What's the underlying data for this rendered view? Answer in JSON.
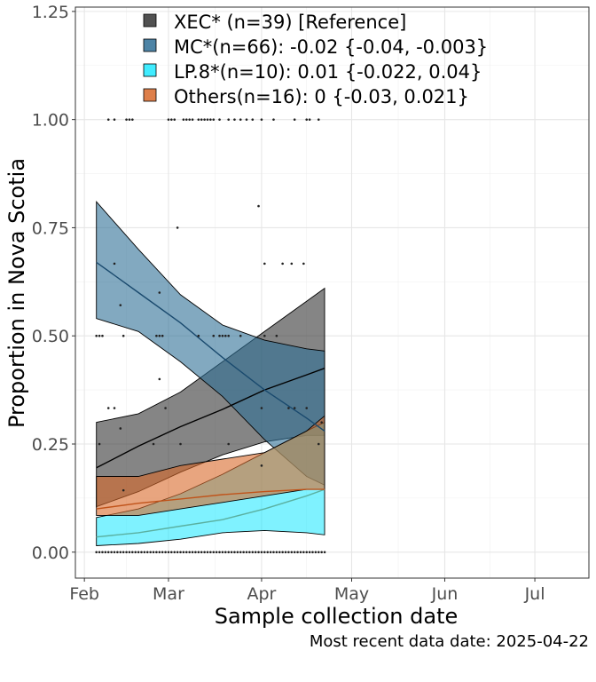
{
  "chart_data": {
    "type": "area",
    "xlabel": "Sample collection date",
    "ylabel": "Proportion in Nova Scotia",
    "caption": "Most recent data date: 2025-04-22",
    "xlim": [
      "2025-01-29",
      "2025-07-19"
    ],
    "ylim": [
      -0.06,
      1.26
    ],
    "x_ticks": [
      {
        "date": "2025-02-01",
        "label": "Feb"
      },
      {
        "date": "2025-03-01",
        "label": "Mar"
      },
      {
        "date": "2025-04-01",
        "label": "Apr"
      },
      {
        "date": "2025-05-01",
        "label": "May"
      },
      {
        "date": "2025-06-01",
        "label": "Jun"
      },
      {
        "date": "2025-07-01",
        "label": "Jul"
      }
    ],
    "y_ticks": [
      {
        "value": 0,
        "label": "0.00"
      },
      {
        "value": 0.25,
        "label": "0.25"
      },
      {
        "value": 0.5,
        "label": "0.50"
      },
      {
        "value": 0.75,
        "label": "0.75"
      },
      {
        "value": 1.0,
        "label": "1.00"
      },
      {
        "value": 1.25,
        "label": "1.25"
      }
    ],
    "grid": true,
    "legend_position": "top-left",
    "x_dates": [
      "2025-02-05",
      "2025-02-19",
      "2025-03-05",
      "2025-03-19",
      "2025-04-02",
      "2025-04-16",
      "2025-04-22"
    ],
    "series": [
      {
        "legend": "XEC* (n=39)  [Reference]",
        "color": "#000000",
        "fill": "#333333",
        "fill_opacity": 0.6,
        "fit": [
          0.195,
          0.245,
          0.29,
          0.33,
          0.375,
          0.41,
          0.425
        ],
        "lower": [
          0.105,
          0.14,
          0.185,
          0.225,
          0.255,
          0.27,
          0.27
        ],
        "upper": [
          0.3,
          0.32,
          0.37,
          0.44,
          0.51,
          0.58,
          0.61
        ]
      },
      {
        "legend": "MC*(n=66): -0.02 {-0.04, -0.003}",
        "color": "#1a4a6e",
        "fill": "#2e6f96",
        "fill_opacity": 0.6,
        "fit": [
          0.67,
          0.6,
          0.53,
          0.45,
          0.375,
          0.31,
          0.28
        ],
        "lower": [
          0.54,
          0.51,
          0.44,
          0.36,
          0.26,
          0.175,
          0.155
        ],
        "upper": [
          0.81,
          0.7,
          0.595,
          0.525,
          0.49,
          0.47,
          0.465
        ]
      },
      {
        "legend": "LP.8*(n=10): 0.01 {-0.022, 0.04}",
        "color": "#5ab0a0",
        "fill": "#00e5ff",
        "fill_opacity": 0.5,
        "fit": [
          0.035,
          0.045,
          0.06,
          0.075,
          0.1,
          0.13,
          0.145
        ],
        "lower": [
          0.015,
          0.02,
          0.03,
          0.045,
          0.05,
          0.045,
          0.04
        ],
        "upper": [
          0.08,
          0.1,
          0.135,
          0.18,
          0.23,
          0.28,
          0.3
        ]
      },
      {
        "legend": "Others(n=16): 0 {-0.03, 0.021}",
        "color": "#c0531a",
        "fill": "#d8692a",
        "fill_opacity": 0.6,
        "fit": [
          0.1,
          0.113,
          0.123,
          0.133,
          0.14,
          0.145,
          0.145
        ],
        "lower": [
          0.085,
          0.085,
          0.1,
          0.115,
          0.13,
          0.145,
          0.145
        ],
        "upper": [
          0.175,
          0.175,
          0.2,
          0.215,
          0.23,
          0.28,
          0.315
        ]
      }
    ],
    "points": [
      {
        "x": "2025-02-05",
        "y": 0.5
      },
      {
        "x": "2025-02-06",
        "y": 0.5
      },
      {
        "x": "2025-02-07",
        "y": 0.5
      },
      {
        "x": "2025-02-06",
        "y": 0.25
      },
      {
        "x": "2025-02-09",
        "y": 0.333
      },
      {
        "x": "2025-02-11",
        "y": 0.333
      },
      {
        "x": "2025-02-09",
        "y": 1.0
      },
      {
        "x": "2025-02-11",
        "y": 1.0
      },
      {
        "x": "2025-02-15",
        "y": 1.0
      },
      {
        "x": "2025-02-16",
        "y": 1.0
      },
      {
        "x": "2025-02-17",
        "y": 1.0
      },
      {
        "x": "2025-02-11",
        "y": 0.667
      },
      {
        "x": "2025-02-13",
        "y": 0.571
      },
      {
        "x": "2025-02-14",
        "y": 0.5
      },
      {
        "x": "2025-02-13",
        "y": 0.286
      },
      {
        "x": "2025-02-14",
        "y": 0.143
      },
      {
        "x": "2025-02-24",
        "y": 0.25
      },
      {
        "x": "2025-02-26",
        "y": 0.6
      },
      {
        "x": "2025-02-25",
        "y": 0.5
      },
      {
        "x": "2025-02-26",
        "y": 0.5
      },
      {
        "x": "2025-02-27",
        "y": 0.5
      },
      {
        "x": "2025-02-26",
        "y": 0.4
      },
      {
        "x": "2025-02-28",
        "y": 0.333
      },
      {
        "x": "2025-03-01",
        "y": 1.0
      },
      {
        "x": "2025-03-02",
        "y": 1.0
      },
      {
        "x": "2025-03-03",
        "y": 1.0
      },
      {
        "x": "2025-03-04",
        "y": 0.75
      },
      {
        "x": "2025-03-05",
        "y": 0.25
      },
      {
        "x": "2025-03-06",
        "y": 1.0
      },
      {
        "x": "2025-03-07",
        "y": 1.0
      },
      {
        "x": "2025-03-08",
        "y": 1.0
      },
      {
        "x": "2025-03-09",
        "y": 1.0
      },
      {
        "x": "2025-03-11",
        "y": 1.0
      },
      {
        "x": "2025-03-12",
        "y": 1.0
      },
      {
        "x": "2025-03-13",
        "y": 1.0
      },
      {
        "x": "2025-03-14",
        "y": 1.0
      },
      {
        "x": "2025-03-15",
        "y": 1.0
      },
      {
        "x": "2025-03-16",
        "y": 1.0
      },
      {
        "x": "2025-03-18",
        "y": 1.0
      },
      {
        "x": "2025-03-21",
        "y": 1.0
      },
      {
        "x": "2025-03-23",
        "y": 1.0
      },
      {
        "x": "2025-03-25",
        "y": 1.0
      },
      {
        "x": "2025-03-27",
        "y": 1.0
      },
      {
        "x": "2025-03-11",
        "y": 0.5
      },
      {
        "x": "2025-03-16",
        "y": 0.5
      },
      {
        "x": "2025-03-18",
        "y": 0.5
      },
      {
        "x": "2025-03-19",
        "y": 0.5
      },
      {
        "x": "2025-03-20",
        "y": 0.5
      },
      {
        "x": "2025-03-21",
        "y": 0.5
      },
      {
        "x": "2025-03-25",
        "y": 0.5
      },
      {
        "x": "2025-03-31",
        "y": 0.8
      },
      {
        "x": "2025-04-02",
        "y": 0.667
      },
      {
        "x": "2025-04-08",
        "y": 0.667
      },
      {
        "x": "2025-04-11",
        "y": 0.667
      },
      {
        "x": "2025-04-15",
        "y": 0.667
      },
      {
        "x": "2025-03-29",
        "y": 1.0
      },
      {
        "x": "2025-04-01",
        "y": 1.0
      },
      {
        "x": "2025-04-05",
        "y": 1.0
      },
      {
        "x": "2025-04-12",
        "y": 1.0
      },
      {
        "x": "2025-04-16",
        "y": 1.0
      },
      {
        "x": "2025-04-17",
        "y": 1.0
      },
      {
        "x": "2025-04-20",
        "y": 1.0
      },
      {
        "x": "2025-04-02",
        "y": 0.5
      },
      {
        "x": "2025-04-06",
        "y": 0.5
      },
      {
        "x": "2025-03-21",
        "y": 0.25
      },
      {
        "x": "2025-04-01",
        "y": 0.333
      },
      {
        "x": "2025-04-10",
        "y": 0.333
      },
      {
        "x": "2025-04-12",
        "y": 0.333
      },
      {
        "x": "2025-04-16",
        "y": 0.333
      },
      {
        "x": "2025-04-01",
        "y": 0.2
      },
      {
        "x": "2025-04-20",
        "y": 0.25
      },
      {
        "x": "2025-04-21",
        "y": 0.3
      }
    ],
    "zero_row_points": {
      "from": "2025-02-05",
      "to": "2025-04-22",
      "step_days": 1,
      "y": 0
    }
  }
}
